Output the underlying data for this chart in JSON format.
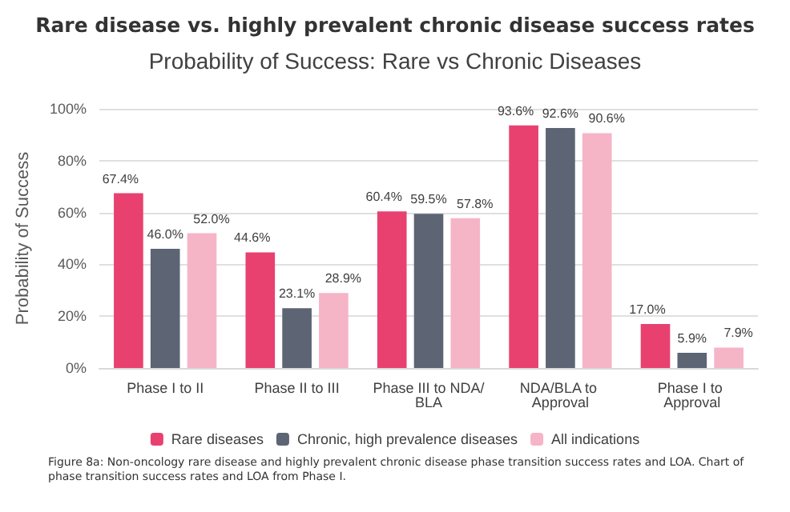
{
  "chart_data": {
    "type": "bar",
    "title": "Rare disease vs. highly prevalent chronic disease success rates",
    "subtitle": "Probability of Success: Rare vs Chronic Diseases",
    "ylabel": "Probability of Success",
    "categories": [
      "Phase I to II",
      "Phase II to III",
      "Phase III to NDA/BLA",
      "NDA/BLA to Approval",
      "Phase I to Approval"
    ],
    "series": [
      {
        "name": "Rare diseases",
        "color": "#e8416f",
        "values": [
          67.4,
          44.6,
          60.4,
          93.6,
          17.0
        ],
        "value_labels": [
          "67.4%",
          "44.6%",
          "60.4%",
          "93.6%",
          "17.0%"
        ]
      },
      {
        "name": "Chronic, high prevalence diseases",
        "color": "#5d6474",
        "values": [
          46.0,
          23.1,
          59.5,
          92.6,
          5.9
        ],
        "value_labels": [
          "46.0%",
          "23.1%",
          "59.5%",
          "92.6%",
          "5.9%"
        ]
      },
      {
        "name": "All indications",
        "color": "#f5b5c7",
        "values": [
          52.0,
          28.9,
          57.8,
          90.6,
          7.9
        ],
        "value_labels": [
          "52.0%",
          "28.9%",
          "57.8%",
          "90.6%",
          "7.9%"
        ]
      }
    ],
    "ylim": [
      0,
      100
    ],
    "yticks": [
      {
        "value": 0,
        "label": "0%"
      },
      {
        "value": 20,
        "label": "20%"
      },
      {
        "value": 40,
        "label": "40%"
      },
      {
        "value": 60,
        "label": "60%"
      },
      {
        "value": 80,
        "label": "80%"
      },
      {
        "value": 100,
        "label": "100%"
      }
    ],
    "grid": "y",
    "legend": "bottom",
    "annotations": [
      "Figure 8a: Non-oncology rare disease and highly prevalent chronic disease phase transition success rates and LOA. Chart of phase transition success rates and LOA from Phase I."
    ]
  }
}
